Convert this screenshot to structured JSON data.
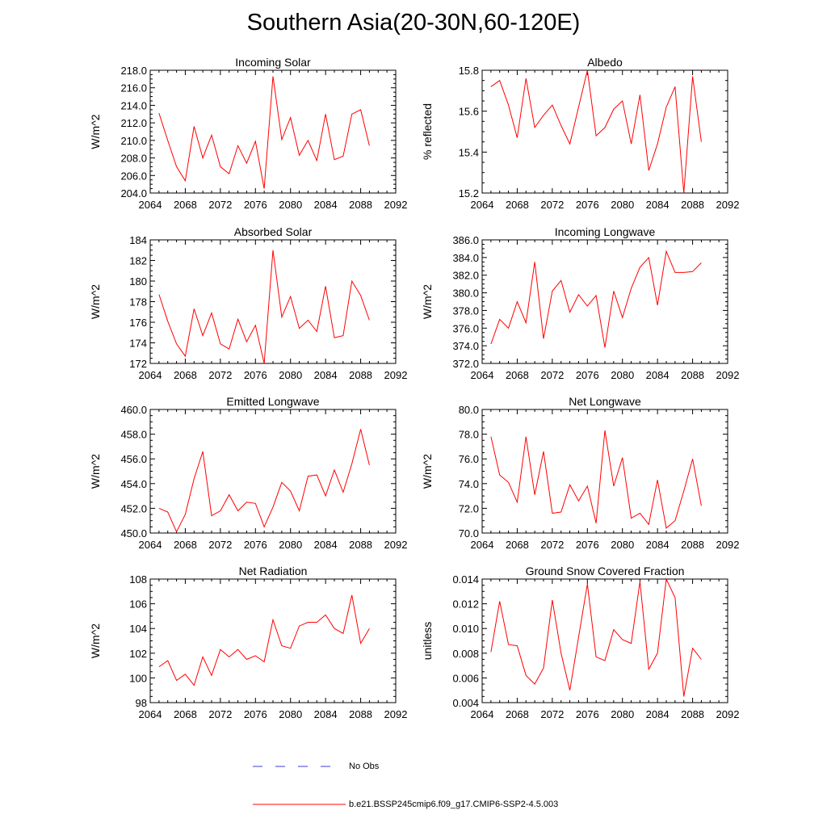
{
  "page_title": "Southern Asia(20-30N,60-120E)",
  "legend": {
    "obs_label": "No Obs",
    "obs_color": "#3b3bd9",
    "model_label": "b.e21.BSSP245cmip6.f09_g17.CMIP6-SSP2-4.5.003",
    "model_color": "#ff0000"
  },
  "chart_data": [
    {
      "type": "line",
      "title": "Incoming Solar",
      "xlabel": "",
      "ylabel": "W/m^2",
      "xlim": [
        2064,
        2092
      ],
      "ylim": [
        204,
        218
      ],
      "xticks": [
        2064,
        2068,
        2072,
        2076,
        2080,
        2084,
        2088,
        2092
      ],
      "yticks": [
        "204.0",
        "206.0",
        "208.0",
        "210.0",
        "212.0",
        "214.0",
        "216.0",
        "218.0"
      ],
      "ytick_values": [
        204,
        206,
        208,
        210,
        212,
        214,
        216,
        218
      ],
      "x": [
        2065,
        2066,
        2067,
        2068,
        2069,
        2070,
        2071,
        2072,
        2073,
        2074,
        2075,
        2076,
        2077,
        2078,
        2079,
        2080,
        2081,
        2082,
        2083,
        2084,
        2085,
        2086,
        2087,
        2088,
        2089
      ],
      "series": [
        {
          "name": "b.e21.BSSP245cmip6.f09_g17.CMIP6-SSP2-4.5.003",
          "values": [
            213.1,
            210.0,
            207.0,
            205.4,
            211.6,
            208.0,
            210.6,
            207.0,
            206.2,
            209.4,
            207.4,
            209.9,
            204.5,
            217.3,
            210.1,
            212.6,
            208.3,
            210.0,
            207.7,
            213.0,
            207.8,
            208.2,
            213.0,
            213.5,
            209.4
          ]
        }
      ]
    },
    {
      "type": "line",
      "title": "Albedo",
      "xlabel": "",
      "ylabel": "% reflected",
      "xlim": [
        2064,
        2092
      ],
      "ylim": [
        15.2,
        15.8
      ],
      "xticks": [
        2064,
        2068,
        2072,
        2076,
        2080,
        2084,
        2088,
        2092
      ],
      "yticks": [
        "15.2",
        "15.4",
        "15.6",
        "15.8"
      ],
      "ytick_values": [
        15.2,
        15.4,
        15.6,
        15.8
      ],
      "x": [
        2065,
        2066,
        2067,
        2068,
        2069,
        2070,
        2071,
        2072,
        2073,
        2074,
        2075,
        2076,
        2077,
        2078,
        2079,
        2080,
        2081,
        2082,
        2083,
        2084,
        2085,
        2086,
        2087,
        2088,
        2089
      ],
      "series": [
        {
          "name": "b.e21.BSSP245cmip6.f09_g17.CMIP6-SSP2-4.5.003",
          "values": [
            15.72,
            15.75,
            15.63,
            15.47,
            15.76,
            15.52,
            15.58,
            15.63,
            15.53,
            15.44,
            15.62,
            15.8,
            15.48,
            15.52,
            15.61,
            15.65,
            15.44,
            15.68,
            15.31,
            15.44,
            15.62,
            15.72,
            15.2,
            15.77,
            15.45
          ]
        }
      ]
    },
    {
      "type": "line",
      "title": "Absorbed Solar",
      "xlabel": "",
      "ylabel": "W/m^2",
      "xlim": [
        2064,
        2092
      ],
      "ylim": [
        172,
        184
      ],
      "xticks": [
        2064,
        2068,
        2072,
        2076,
        2080,
        2084,
        2088,
        2092
      ],
      "yticks": [
        "172",
        "174",
        "176",
        "178",
        "180",
        "182",
        "184"
      ],
      "ytick_values": [
        172,
        174,
        176,
        178,
        180,
        182,
        184
      ],
      "x": [
        2065,
        2066,
        2067,
        2068,
        2069,
        2070,
        2071,
        2072,
        2073,
        2074,
        2075,
        2076,
        2077,
        2078,
        2079,
        2080,
        2081,
        2082,
        2083,
        2084,
        2085,
        2086,
        2087,
        2088,
        2089
      ],
      "series": [
        {
          "name": "b.e21.BSSP245cmip6.f09_g17.CMIP6-SSP2-4.5.003",
          "values": [
            178.7,
            176.1,
            173.9,
            172.7,
            177.3,
            174.7,
            176.9,
            173.9,
            173.4,
            176.3,
            174.1,
            175.7,
            172.0,
            183.0,
            176.5,
            178.5,
            175.4,
            176.2,
            175.1,
            179.5,
            174.5,
            174.7,
            180.0,
            178.6,
            176.2
          ]
        }
      ]
    },
    {
      "type": "line",
      "title": "Incoming Longwave",
      "xlabel": "",
      "ylabel": "W/m^2",
      "xlim": [
        2064,
        2092
      ],
      "ylim": [
        372,
        386
      ],
      "xticks": [
        2064,
        2068,
        2072,
        2076,
        2080,
        2084,
        2088,
        2092
      ],
      "yticks": [
        "372.0",
        "374.0",
        "376.0",
        "378.0",
        "380.0",
        "382.0",
        "384.0",
        "386.0"
      ],
      "ytick_values": [
        372,
        374,
        376,
        378,
        380,
        382,
        384,
        386
      ],
      "x": [
        2065,
        2066,
        2067,
        2068,
        2069,
        2070,
        2071,
        2072,
        2073,
        2074,
        2075,
        2076,
        2077,
        2078,
        2079,
        2080,
        2081,
        2082,
        2083,
        2084,
        2085,
        2086,
        2087,
        2088,
        2089
      ],
      "series": [
        {
          "name": "b.e21.BSSP245cmip6.f09_g17.CMIP6-SSP2-4.5.003",
          "values": [
            374.2,
            377.0,
            376.0,
            379.0,
            376.6,
            383.5,
            374.8,
            380.2,
            381.4,
            377.8,
            379.8,
            378.5,
            379.7,
            373.8,
            380.2,
            377.2,
            380.5,
            382.9,
            384.0,
            378.6,
            384.7,
            382.3,
            382.3,
            382.4,
            383.4
          ]
        }
      ]
    },
    {
      "type": "line",
      "title": "Emitted Longwave",
      "xlabel": "",
      "ylabel": "W/m^2",
      "xlim": [
        2064,
        2092
      ],
      "ylim": [
        450,
        460
      ],
      "xticks": [
        2064,
        2068,
        2072,
        2076,
        2080,
        2084,
        2088,
        2092
      ],
      "yticks": [
        "450.0",
        "452.0",
        "454.0",
        "456.0",
        "458.0",
        "460.0"
      ],
      "ytick_values": [
        450,
        452,
        454,
        456,
        458,
        460
      ],
      "x": [
        2065,
        2066,
        2067,
        2068,
        2069,
        2070,
        2071,
        2072,
        2073,
        2074,
        2075,
        2076,
        2077,
        2078,
        2079,
        2080,
        2081,
        2082,
        2083,
        2084,
        2085,
        2086,
        2087,
        2088,
        2089
      ],
      "series": [
        {
          "name": "b.e21.BSSP245cmip6.f09_g17.CMIP6-SSP2-4.5.003",
          "values": [
            452.0,
            451.7,
            450.1,
            451.5,
            454.4,
            456.6,
            451.4,
            451.8,
            453.1,
            451.8,
            452.5,
            452.4,
            450.5,
            452.1,
            454.1,
            453.4,
            451.8,
            454.6,
            454.7,
            453.0,
            455.1,
            453.3,
            455.6,
            458.4,
            455.5
          ]
        }
      ]
    },
    {
      "type": "line",
      "title": "Net Longwave",
      "xlabel": "",
      "ylabel": "W/m^2",
      "xlim": [
        2064,
        2092
      ],
      "ylim": [
        70,
        80
      ],
      "xticks": [
        2064,
        2068,
        2072,
        2076,
        2080,
        2084,
        2088,
        2092
      ],
      "yticks": [
        "70.0",
        "72.0",
        "74.0",
        "76.0",
        "78.0",
        "80.0"
      ],
      "ytick_values": [
        70,
        72,
        74,
        76,
        78,
        80
      ],
      "x": [
        2065,
        2066,
        2067,
        2068,
        2069,
        2070,
        2071,
        2072,
        2073,
        2074,
        2075,
        2076,
        2077,
        2078,
        2079,
        2080,
        2081,
        2082,
        2083,
        2084,
        2085,
        2086,
        2087,
        2088,
        2089
      ],
      "series": [
        {
          "name": "b.e21.BSSP245cmip6.f09_g17.CMIP6-SSP2-4.5.003",
          "values": [
            77.8,
            74.7,
            74.1,
            72.5,
            77.8,
            73.1,
            76.6,
            71.6,
            71.7,
            73.9,
            72.6,
            73.8,
            70.8,
            78.3,
            73.8,
            76.1,
            71.2,
            71.6,
            70.7,
            74.3,
            70.4,
            71.0,
            73.4,
            76.0,
            72.2
          ]
        }
      ]
    },
    {
      "type": "line",
      "title": "Net Radiation",
      "xlabel": "",
      "ylabel": "W/m^2",
      "xlim": [
        2064,
        2092
      ],
      "ylim": [
        98,
        108
      ],
      "xticks": [
        2064,
        2068,
        2072,
        2076,
        2080,
        2084,
        2088,
        2092
      ],
      "yticks": [
        "98",
        "100",
        "102",
        "104",
        "106",
        "108"
      ],
      "ytick_values": [
        98,
        100,
        102,
        104,
        106,
        108
      ],
      "x": [
        2065,
        2066,
        2067,
        2068,
        2069,
        2070,
        2071,
        2072,
        2073,
        2074,
        2075,
        2076,
        2077,
        2078,
        2079,
        2080,
        2081,
        2082,
        2083,
        2084,
        2085,
        2086,
        2087,
        2088,
        2089
      ],
      "series": [
        {
          "name": "b.e21.BSSP245cmip6.f09_g17.CMIP6-SSP2-4.5.003",
          "values": [
            100.9,
            101.4,
            99.8,
            100.3,
            99.4,
            101.7,
            100.2,
            102.3,
            101.7,
            102.3,
            101.5,
            101.8,
            101.3,
            104.7,
            102.6,
            102.4,
            104.2,
            104.5,
            104.5,
            105.1,
            104.0,
            103.6,
            106.7,
            102.8,
            104.0
          ]
        }
      ]
    },
    {
      "type": "line",
      "title": "Ground Snow Covered Fraction",
      "xlabel": "",
      "ylabel": "unitless",
      "xlim": [
        2064,
        2092
      ],
      "ylim": [
        0.004,
        0.014
      ],
      "xticks": [
        2064,
        2068,
        2072,
        2076,
        2080,
        2084,
        2088,
        2092
      ],
      "yticks": [
        "0.004",
        "0.006",
        "0.008",
        "0.010",
        "0.012",
        "0.014"
      ],
      "ytick_values": [
        0.004,
        0.006,
        0.008,
        0.01,
        0.012,
        0.014
      ],
      "x": [
        2065,
        2066,
        2067,
        2068,
        2069,
        2070,
        2071,
        2072,
        2073,
        2074,
        2075,
        2076,
        2077,
        2078,
        2079,
        2080,
        2081,
        2082,
        2083,
        2084,
        2085,
        2086,
        2087,
        2088,
        2089
      ],
      "series": [
        {
          "name": "b.e21.BSSP245cmip6.f09_g17.CMIP6-SSP2-4.5.003",
          "values": [
            0.0081,
            0.0122,
            0.0087,
            0.0086,
            0.0062,
            0.0055,
            0.0068,
            0.0123,
            0.008,
            0.005,
            0.0093,
            0.0136,
            0.0077,
            0.0074,
            0.0099,
            0.0091,
            0.0088,
            0.0138,
            0.0067,
            0.008,
            0.014,
            0.0125,
            0.0045,
            0.0084,
            0.0075
          ]
        }
      ]
    }
  ]
}
